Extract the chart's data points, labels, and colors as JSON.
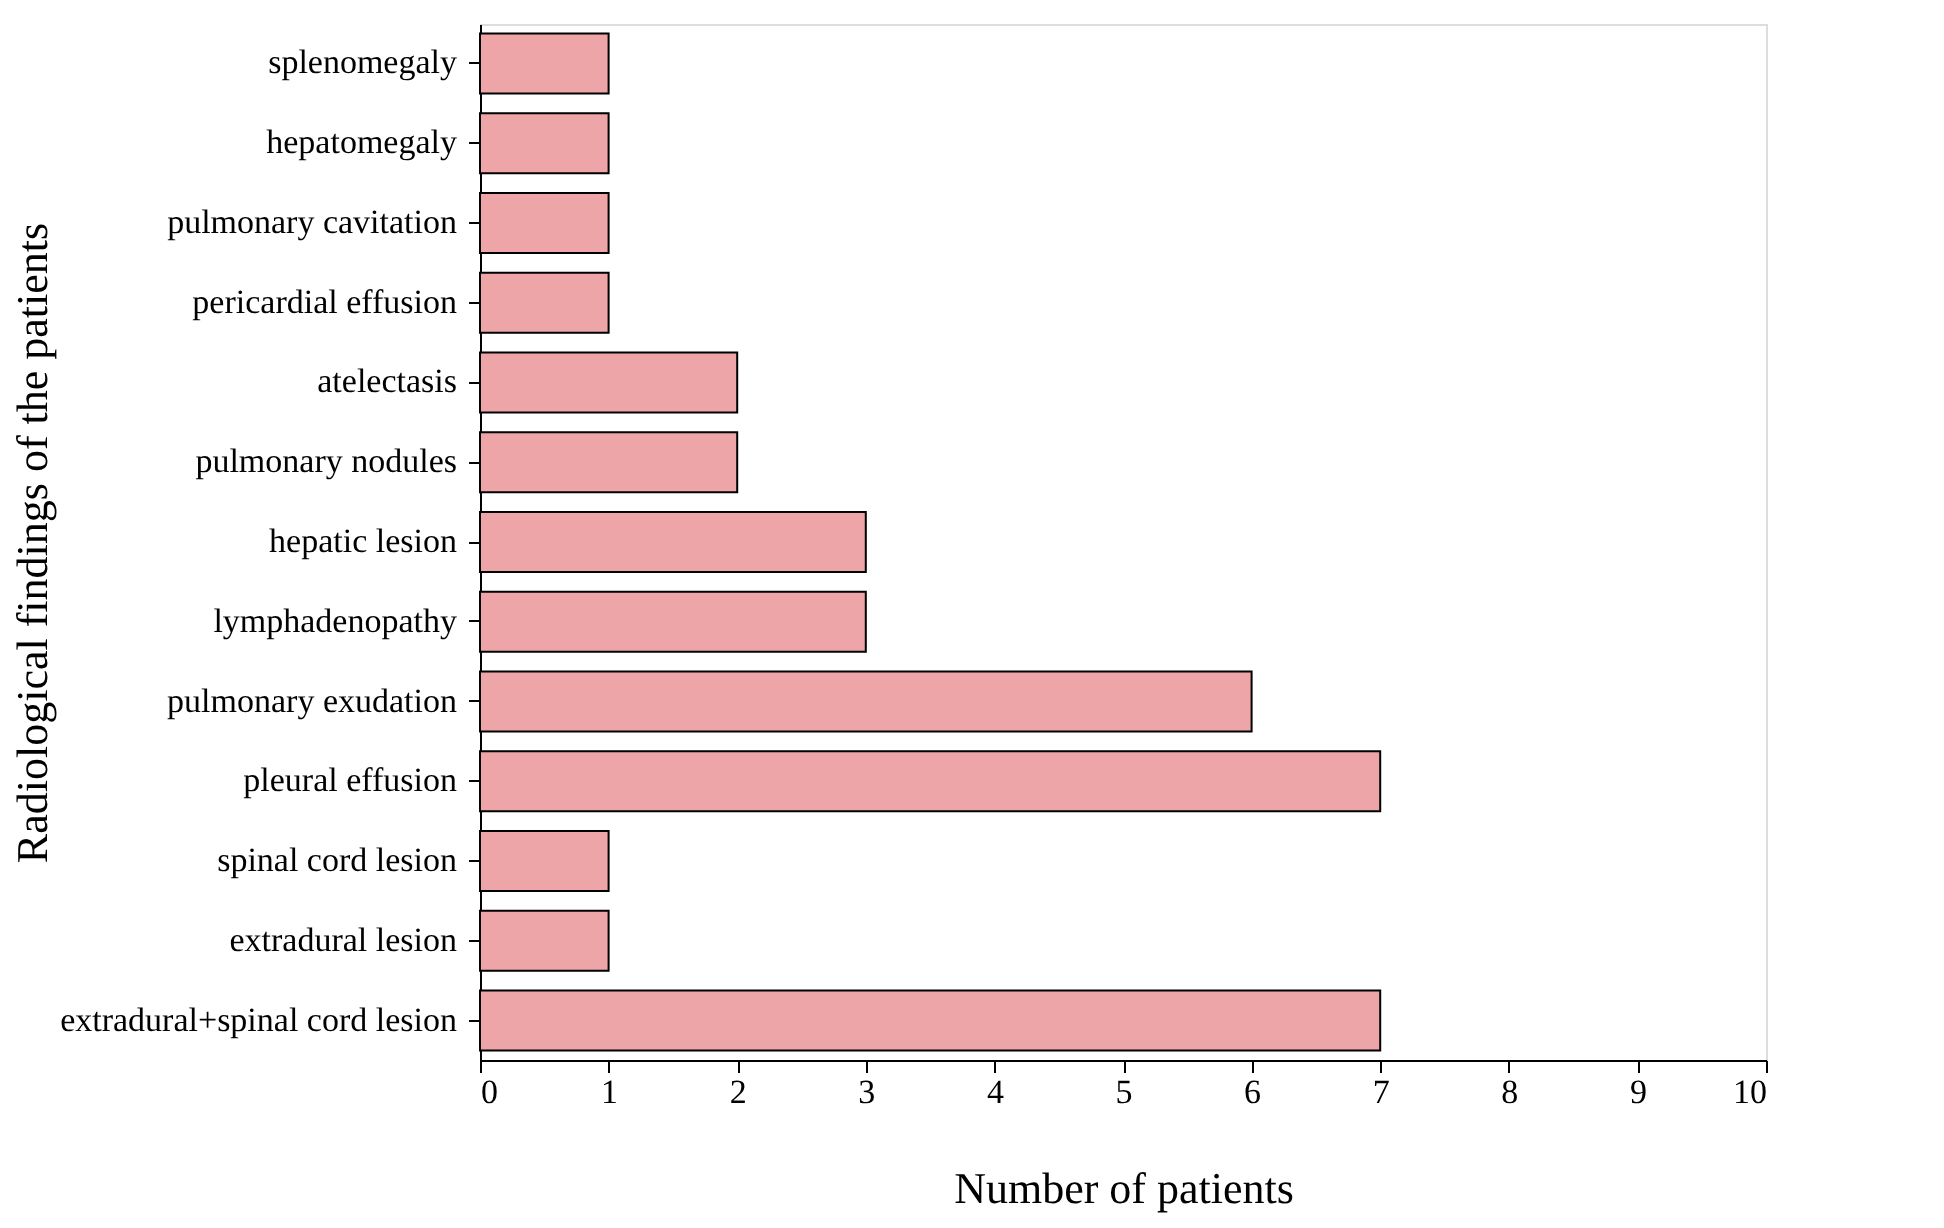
{
  "chart_data": {
    "type": "bar",
    "orientation": "horizontal",
    "categories": [
      "splenomegaly",
      "hepatomegaly",
      "pulmonary cavitation",
      "pericardial effusion",
      "atelectasis",
      "pulmonary nodules",
      "hepatic lesion",
      "lymphadenopathy",
      "pulmonary exudation",
      "pleural effusion",
      "spinal cord lesion",
      "extradural lesion",
      "extradural+spinal cord lesion"
    ],
    "values": [
      1,
      1,
      1,
      1,
      2,
      2,
      3,
      3,
      6,
      7,
      1,
      1,
      7
    ],
    "color": "#eda5a8",
    "xlabel": "Number of patients",
    "ylabel": "Radiological findings of the patients",
    "xlim": [
      0,
      10
    ],
    "xticks": [
      0,
      1,
      2,
      3,
      4,
      5,
      6,
      7,
      8,
      9,
      10
    ],
    "grid": false
  }
}
